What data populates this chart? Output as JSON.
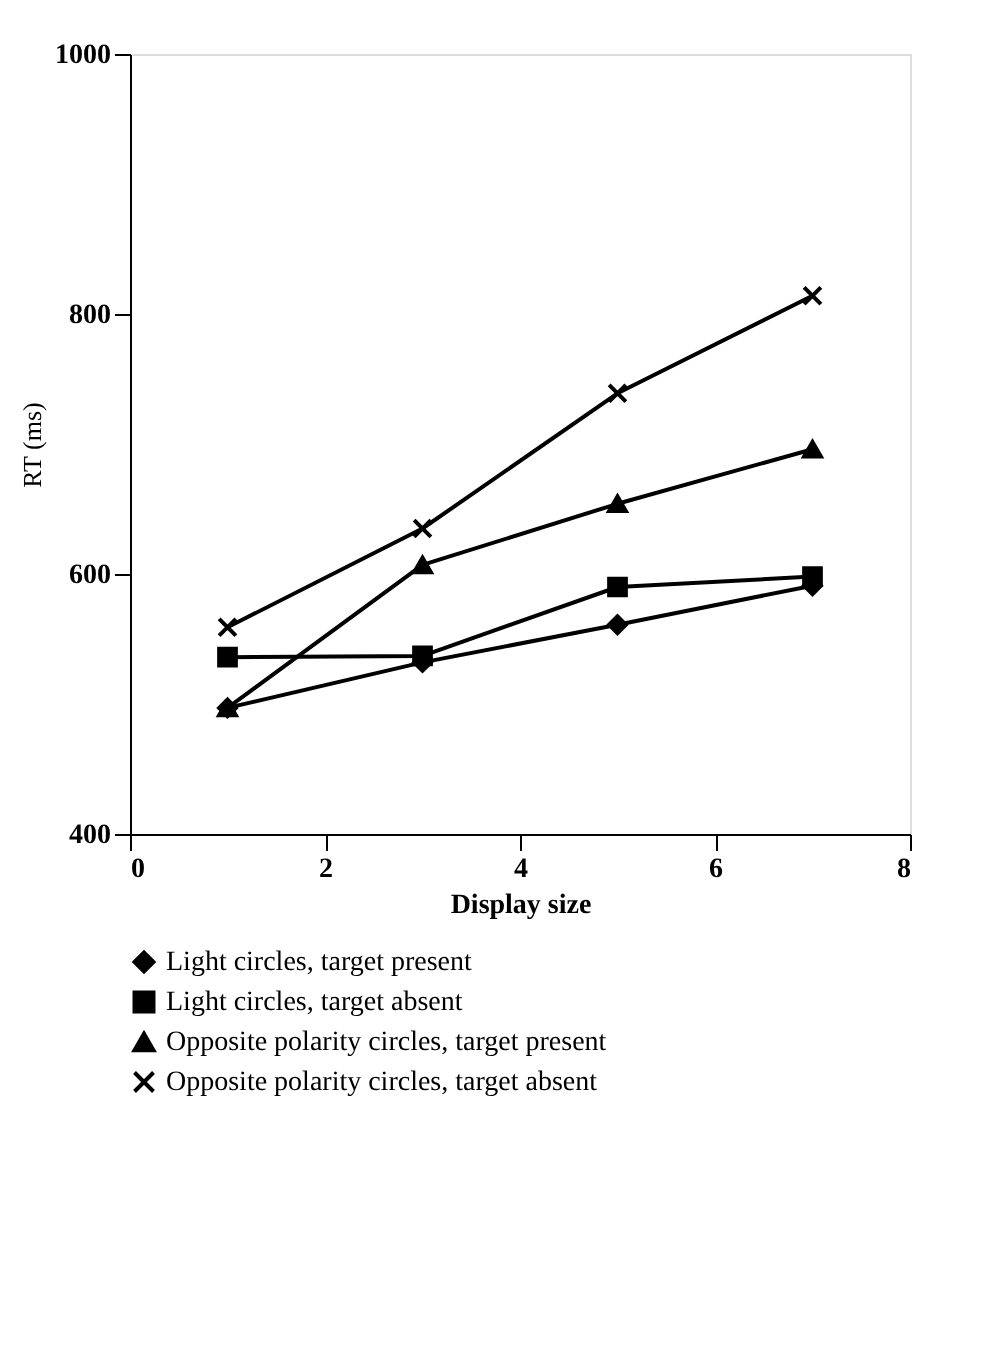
{
  "chart_data": {
    "type": "line",
    "xlabel": "Display size",
    "ylabel": "RT (ms)",
    "x": [
      1,
      3,
      5,
      7
    ],
    "xlim": [
      0,
      8
    ],
    "xticks": [
      0,
      2,
      4,
      6,
      8
    ],
    "ylim": [
      400,
      1000
    ],
    "yticks": [
      400,
      600,
      800,
      1000
    ],
    "grid": false,
    "legend": "bottom",
    "line_style": "solid",
    "series": [
      {
        "name": "Light circles, target present",
        "color": "#000000",
        "marker": "diamond",
        "values": [
          497,
          532,
          561,
          591
        ]
      },
      {
        "name": "Light circles, target absent",
        "color": "#000000",
        "marker": "square",
        "values": [
          536,
          537,
          590,
          598
        ]
      },
      {
        "name": "Opposite polarity circles, target present",
        "color": "#000000",
        "marker": "triangle",
        "values": [
          497,
          607,
          654,
          696
        ]
      },
      {
        "name": "Opposite polarity circles, target absent",
        "color": "#000000",
        "marker": "cross",
        "values": [
          559,
          635,
          739,
          814
        ]
      }
    ]
  }
}
